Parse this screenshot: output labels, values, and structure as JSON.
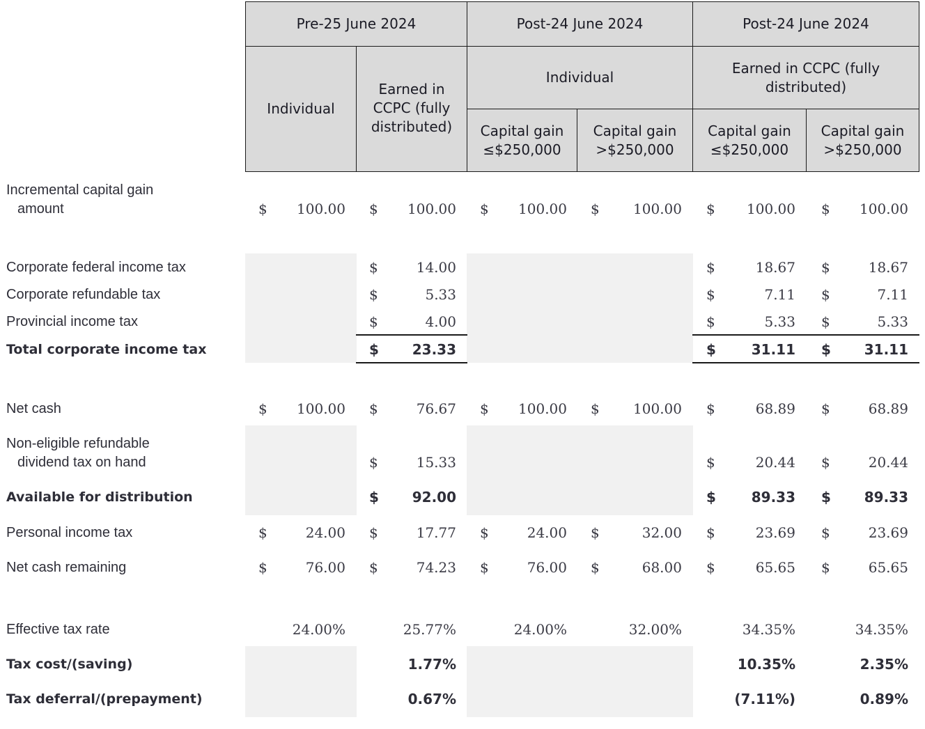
{
  "header": {
    "groups": [
      {
        "label": "Pre-25 June 2024"
      },
      {
        "label": "Post-24 June 2024"
      },
      {
        "label": "Post-24 June 2024"
      }
    ],
    "subgroups": {
      "pre_individual": "Individual",
      "pre_ccpc": "Earned in CCPC (fully distributed)",
      "post_individual": "Individual",
      "post_ccpc": "Earned in CCPC (fully distributed)"
    },
    "columns": [
      {
        "label": "Individual"
      },
      {
        "label": "Earned in CCPC (fully distributed)"
      },
      {
        "label": "Capital gain ≤$250,000"
      },
      {
        "label": "Capital gain >$250,000"
      },
      {
        "label": "Capital gain ≤$250,000"
      },
      {
        "label": "Capital gain >$250,000"
      }
    ]
  },
  "rows": [
    {
      "label": "Incremental capital gain amount",
      "bold": false,
      "values": [
        "100.00",
        "100.00",
        "100.00",
        "100.00",
        "100.00",
        "100.00"
      ]
    },
    {
      "label": "Corporate federal income tax",
      "bold": false,
      "values": [
        "",
        "14.00",
        "",
        "",
        "18.67",
        "18.67"
      ]
    },
    {
      "label": "Corporate refundable tax",
      "bold": false,
      "values": [
        "",
        "5.33",
        "",
        "",
        "7.11",
        "7.11"
      ]
    },
    {
      "label": "Provincial income tax",
      "bold": false,
      "values": [
        "",
        "4.00",
        "",
        "",
        "5.33",
        "5.33"
      ]
    },
    {
      "label": "Total corporate income tax",
      "bold": true,
      "values": [
        "",
        "23.33",
        "",
        "",
        "31.11",
        "31.11"
      ]
    },
    {
      "label": "Net cash",
      "bold": false,
      "values": [
        "100.00",
        "76.67",
        "100.00",
        "100.00",
        "68.89",
        "68.89"
      ]
    },
    {
      "label": "Non-eligible refundable dividend tax on hand",
      "bold": false,
      "values": [
        "",
        "15.33",
        "",
        "",
        "20.44",
        "20.44"
      ]
    },
    {
      "label": "Available for distribution",
      "bold": true,
      "values": [
        "",
        "92.00",
        "",
        "",
        "89.33",
        "89.33"
      ]
    },
    {
      "label": "Personal income tax",
      "bold": false,
      "values": [
        "24.00",
        "17.77",
        "24.00",
        "32.00",
        "23.69",
        "23.69"
      ]
    },
    {
      "label": "Net cash remaining",
      "bold": false,
      "values": [
        "76.00",
        "74.23",
        "76.00",
        "68.00",
        "65.65",
        "65.65"
      ]
    },
    {
      "label": "Effective tax rate",
      "bold": false,
      "values": [
        "24.00%",
        "25.77%",
        "24.00%",
        "32.00%",
        "34.35%",
        "34.35%"
      ]
    },
    {
      "label": "Tax cost/(saving)",
      "bold": true,
      "values": [
        "",
        "1.77%",
        "",
        "",
        "10.35%",
        "2.35%"
      ]
    },
    {
      "label": "Tax deferral/(prepayment)",
      "bold": true,
      "values": [
        "",
        "0.67%",
        "",
        "",
        "(7.11%)",
        "0.89%"
      ]
    }
  ],
  "currency_symbol": "$",
  "colors": {
    "header_bg": "#dadada",
    "shade_bg": "#f1f1f1",
    "text": "#2e2e38"
  }
}
